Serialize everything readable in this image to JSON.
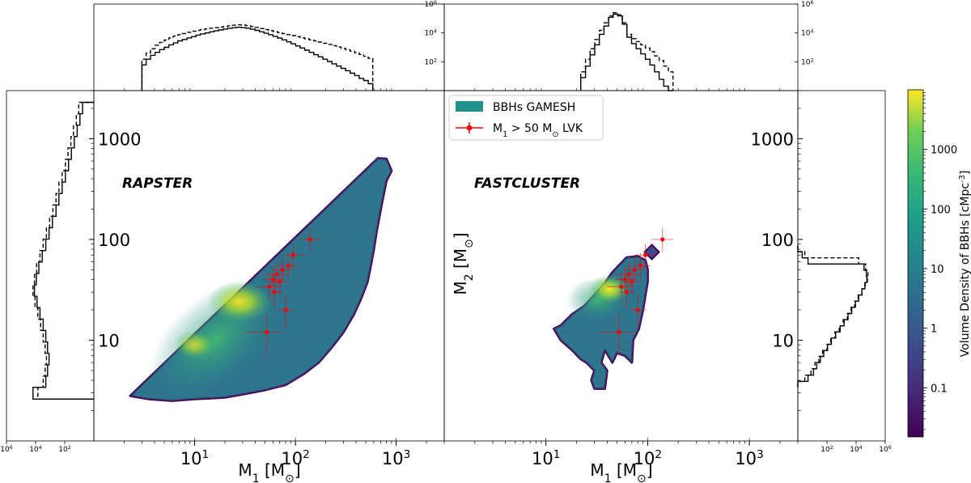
{
  "chart_data": {
    "type": "scatter",
    "colormap": "viridis",
    "panels": [
      {
        "title": "RAPSTER",
        "xlabel": "M$_1$ [M$_\\odot$]",
        "ylabel": "",
        "xscale": "log",
        "yscale": "log",
        "xlim": [
          1,
          3000
        ],
        "ylim": [
          1,
          3000
        ],
        "x_tick_labels": [
          "10^1",
          "10^2",
          "10^3"
        ],
        "y_tick_labels": [
          "10",
          "100",
          "1000"
        ],
        "density_region_vertices": [
          [
            2.3,
            2.8
          ],
          [
            3.5,
            2.6
          ],
          [
            6,
            2.5
          ],
          [
            10,
            2.6
          ],
          [
            20,
            2.7
          ],
          [
            30,
            2.9
          ],
          [
            50,
            3.2
          ],
          [
            80,
            3.6
          ],
          [
            120,
            4.6
          ],
          [
            170,
            6
          ],
          [
            230,
            8.5
          ],
          [
            300,
            12
          ],
          [
            380,
            18
          ],
          [
            450,
            26
          ],
          [
            520,
            38
          ],
          [
            560,
            55
          ],
          [
            600,
            80
          ],
          [
            640,
            120
          ],
          [
            690,
            180
          ],
          [
            740,
            260
          ],
          [
            800,
            380
          ],
          [
            900,
            480
          ],
          [
            800,
            630
          ],
          [
            660,
            640
          ],
          [
            2.3,
            2.8
          ]
        ],
        "lvk_points": [
          {
            "m1": 52,
            "m2": 12,
            "m1_err": [
              20,
              20
            ],
            "m2_err": [
              5,
              6
            ]
          },
          {
            "m1": 55,
            "m2": 34,
            "m1_err": [
              15,
              20
            ],
            "m2_err": [
              10,
              12
            ]
          },
          {
            "m1": 60,
            "m2": 40,
            "m1_err": [
              12,
              18
            ],
            "m2_err": [
              10,
              14
            ]
          },
          {
            "m1": 62,
            "m2": 30,
            "m1_err": [
              10,
              14
            ],
            "m2_err": [
              9,
              12
            ]
          },
          {
            "m1": 65,
            "m2": 45,
            "m1_err": [
              15,
              20
            ],
            "m2_err": [
              12,
              15
            ]
          },
          {
            "m1": 70,
            "m2": 38,
            "m1_err": [
              14,
              18
            ],
            "m2_err": [
              10,
              14
            ]
          },
          {
            "m1": 75,
            "m2": 50,
            "m1_err": [
              15,
              20
            ],
            "m2_err": [
              12,
              16
            ]
          },
          {
            "m1": 80,
            "m2": 20,
            "m1_err": [
              15,
              18
            ],
            "m2_err": [
              7,
              8
            ]
          },
          {
            "m1": 85,
            "m2": 55,
            "m1_err": [
              20,
              22
            ],
            "m2_err": [
              14,
              18
            ]
          },
          {
            "m1": 95,
            "m2": 70,
            "m1_err": [
              20,
              30
            ],
            "m2_err": [
              18,
              20
            ]
          },
          {
            "m1": 140,
            "m2": 100,
            "m1_err": [
              30,
              40
            ],
            "m2_err": [
              25,
              30
            ]
          }
        ],
        "marginal_y": {
          "bin_edges": [
            2.6,
            3.4,
            4.4,
            5.7,
            7.4,
            9.6,
            12.5,
            16.2,
            21,
            27.3,
            35.4,
            46,
            59.7,
            77.5,
            100.6,
            130.6,
            169.5,
            220,
            285.6,
            370.7,
            481,
            624,
            810,
            1050,
            1362,
            1768,
            2294
          ],
          "counts_solid": [
            15000,
            2000,
            1500,
            1200,
            1500,
            2000,
            3000,
            5000,
            8000,
            12000,
            9000,
            6000,
            3500,
            2000,
            1200,
            700,
            400,
            250,
            150,
            90,
            55,
            35,
            22,
            14,
            9,
            6
          ],
          "counts_dashed": [
            7000,
            3000,
            2200,
            1800,
            2200,
            3000,
            4500,
            7000,
            11000,
            15000,
            12000,
            8500,
            5000,
            3000,
            1800,
            1100,
            650,
            400,
            250,
            150,
            90,
            60,
            38,
            25,
            16,
            11
          ]
        },
        "marginal_x": {
          "bin_edges": [
            3,
            3.3,
            3.65,
            4.05,
            4.5,
            5,
            5.55,
            6.15,
            6.8,
            7.55,
            8.4,
            9.3,
            10.3,
            11.4,
            12.7,
            14.1,
            15.6,
            17.3,
            19.2,
            21.3,
            23.6,
            26.2,
            29.1,
            32.3,
            35.8,
            39.7,
            44,
            48.8,
            54.1,
            60,
            66.5,
            73.8,
            81.9,
            90.8,
            100.7,
            111.7,
            123.9,
            137.4,
            152.4,
            169,
            187.4,
            207.9,
            230.6,
            255.8,
            283.7,
            314.7,
            349,
            387.1,
            429.4,
            476.3,
            528.3,
            586
          ],
          "counts_solid": [
            60,
            150,
            280,
            450,
            700,
            1000,
            1500,
            2000,
            2800,
            3500,
            4500,
            5500,
            7000,
            8500,
            10000,
            12000,
            14000,
            16000,
            18500,
            21000,
            23000,
            24500,
            23000,
            21000,
            18000,
            15000,
            12000,
            9500,
            7500,
            5800,
            4400,
            3300,
            2400,
            1750,
            1250,
            900,
            640,
            450,
            310,
            220,
            150,
            105,
            72,
            50,
            35,
            24,
            16,
            11,
            7,
            5,
            3
          ],
          "counts_dashed": [
            150,
            400,
            800,
            1400,
            2200,
            3200,
            4500,
            6000,
            7500,
            9000,
            11000,
            13000,
            15000,
            17000,
            19000,
            21000,
            23000,
            25000,
            28000,
            31000,
            34000,
            36000,
            35000,
            32000,
            28000,
            24000,
            20000,
            17000,
            14500,
            12500,
            10500,
            9000,
            7600,
            6500,
            5500,
            4600,
            3900,
            3300,
            2800,
            2300,
            1900,
            1600,
            1300,
            1050,
            850,
            680,
            540,
            420,
            320,
            240,
            170
          ]
        }
      },
      {
        "title": "FASTCLUSTER",
        "xlabel": "M$_1$ [M$_\\odot$]",
        "ylabel": "M$_2$ [M$_\\odot$]",
        "xscale": "log",
        "yscale": "log",
        "xlim": [
          1,
          3000
        ],
        "ylim": [
          1,
          3000
        ],
        "x_tick_labels": [
          "10^1",
          "10^2",
          "10^3"
        ],
        "y_tick_labels": [
          "10",
          "100",
          "1000"
        ],
        "density_region_vertices": [
          [
            12,
            13
          ],
          [
            14,
            10
          ],
          [
            18,
            8
          ],
          [
            22,
            6.5
          ],
          [
            25,
            6
          ],
          [
            30,
            5
          ],
          [
            28,
            4
          ],
          [
            30,
            3.3
          ],
          [
            38,
            3.3
          ],
          [
            40,
            5
          ],
          [
            35,
            6
          ],
          [
            38,
            8
          ],
          [
            45,
            6
          ],
          [
            50,
            7.5
          ],
          [
            60,
            7
          ],
          [
            70,
            6
          ],
          [
            72,
            10
          ],
          [
            82,
            13
          ],
          [
            90,
            20
          ],
          [
            95,
            28
          ],
          [
            100,
            38
          ],
          [
            100,
            50
          ],
          [
            95,
            62
          ],
          [
            80,
            68
          ],
          [
            62,
            66
          ],
          [
            52,
            55
          ],
          [
            45,
            47
          ],
          [
            38,
            37
          ],
          [
            30,
            28
          ],
          [
            24,
            22
          ],
          [
            18,
            18
          ],
          [
            14,
            14
          ],
          [
            12,
            13
          ]
        ],
        "lvk_points": [
          {
            "m1": 52,
            "m2": 12,
            "m1_err": [
              20,
              20
            ],
            "m2_err": [
              5,
              6
            ]
          },
          {
            "m1": 55,
            "m2": 34,
            "m1_err": [
              15,
              20
            ],
            "m2_err": [
              10,
              12
            ]
          },
          {
            "m1": 60,
            "m2": 40,
            "m1_err": [
              12,
              18
            ],
            "m2_err": [
              10,
              14
            ]
          },
          {
            "m1": 62,
            "m2": 30,
            "m1_err": [
              10,
              14
            ],
            "m2_err": [
              9,
              12
            ]
          },
          {
            "m1": 65,
            "m2": 45,
            "m1_err": [
              15,
              20
            ],
            "m2_err": [
              12,
              15
            ]
          },
          {
            "m1": 70,
            "m2": 38,
            "m1_err": [
              14,
              18
            ],
            "m2_err": [
              10,
              14
            ]
          },
          {
            "m1": 75,
            "m2": 50,
            "m1_err": [
              15,
              20
            ],
            "m2_err": [
              12,
              16
            ]
          },
          {
            "m1": 80,
            "m2": 20,
            "m1_err": [
              15,
              18
            ],
            "m2_err": [
              7,
              8
            ]
          },
          {
            "m1": 85,
            "m2": 55,
            "m1_err": [
              20,
              22
            ],
            "m2_err": [
              14,
              18
            ]
          },
          {
            "m1": 95,
            "m2": 70,
            "m1_err": [
              20,
              30
            ],
            "m2_err": [
              18,
              20
            ]
          },
          {
            "m1": 140,
            "m2": 100,
            "m1_err": [
              30,
              40
            ],
            "m2_err": [
              25,
              30
            ]
          }
        ],
        "marginal_y": {
          "bin_edges": [
            3.4,
            3.9,
            4.5,
            5.2,
            6,
            6.9,
            7.9,
            9.1,
            10.5,
            12.1,
            13.9,
            16,
            18.4,
            21.2,
            24.4,
            28.1,
            32.4,
            37.3,
            43,
            49.5,
            57,
            65.6,
            75.5,
            87
          ],
          "counts_solid": [
            1,
            5,
            12,
            20,
            35,
            60,
            110,
            200,
            400,
            800,
            1500,
            2800,
            5000,
            9000,
            15000,
            25000,
            40000,
            55000,
            50000,
            35000,
            5,
            2,
            0.5
          ],
          "counts_dashed": [
            0.5,
            3,
            8,
            15,
            28,
            50,
            100,
            180,
            350,
            700,
            1300,
            2500,
            4500,
            8000,
            14000,
            25000,
            42000,
            60000,
            65000,
            45000,
            15000,
            3,
            1
          ]
        },
        "marginal_x": {
          "bin_edges": [
            22,
            24.5,
            27.2,
            30.2,
            33.5,
            37.2,
            41.3,
            45.8,
            50.8,
            56.4,
            62.6,
            69.5,
            77.1,
            85.6,
            95,
            105.4,
            117,
            129.9,
            144.1,
            160,
            177.6
          ],
          "counts_solid": [
            8,
            50,
            300,
            1500,
            8000,
            30000,
            120000,
            200000,
            150000,
            40000,
            5000,
            1800,
            800,
            350,
            150,
            60,
            20,
            6,
            2,
            1
          ],
          "counts_dashed": [
            20,
            150,
            800,
            3500,
            15000,
            50000,
            150000,
            250000,
            180000,
            50000,
            8000,
            4000,
            2500,
            1500,
            900,
            500,
            250,
            120,
            50,
            20
          ]
        }
      }
    ],
    "marginal_count_axis": {
      "lim": [
        1,
        1000000
      ],
      "tick_labels": [
        "10^2",
        "10^4",
        "10^6"
      ]
    },
    "legend": [
      {
        "label": "BBHs GAMESH",
        "color": "#21918c",
        "kind": "patch"
      },
      {
        "label": "M$_1$ > 50 M$_\\odot$ LVK",
        "color": "#ff0000",
        "kind": "errorbar"
      }
    ],
    "colorbar": {
      "label": "Volume Density of BBHs [cMpc$^{-3}$]",
      "scale": "log",
      "lim": [
        0.015,
        10000
      ],
      "ticks": [
        0.1,
        1,
        10,
        100,
        1000
      ],
      "tick_labels": [
        "0.1",
        "1",
        "10",
        "100",
        "1000"
      ]
    }
  }
}
